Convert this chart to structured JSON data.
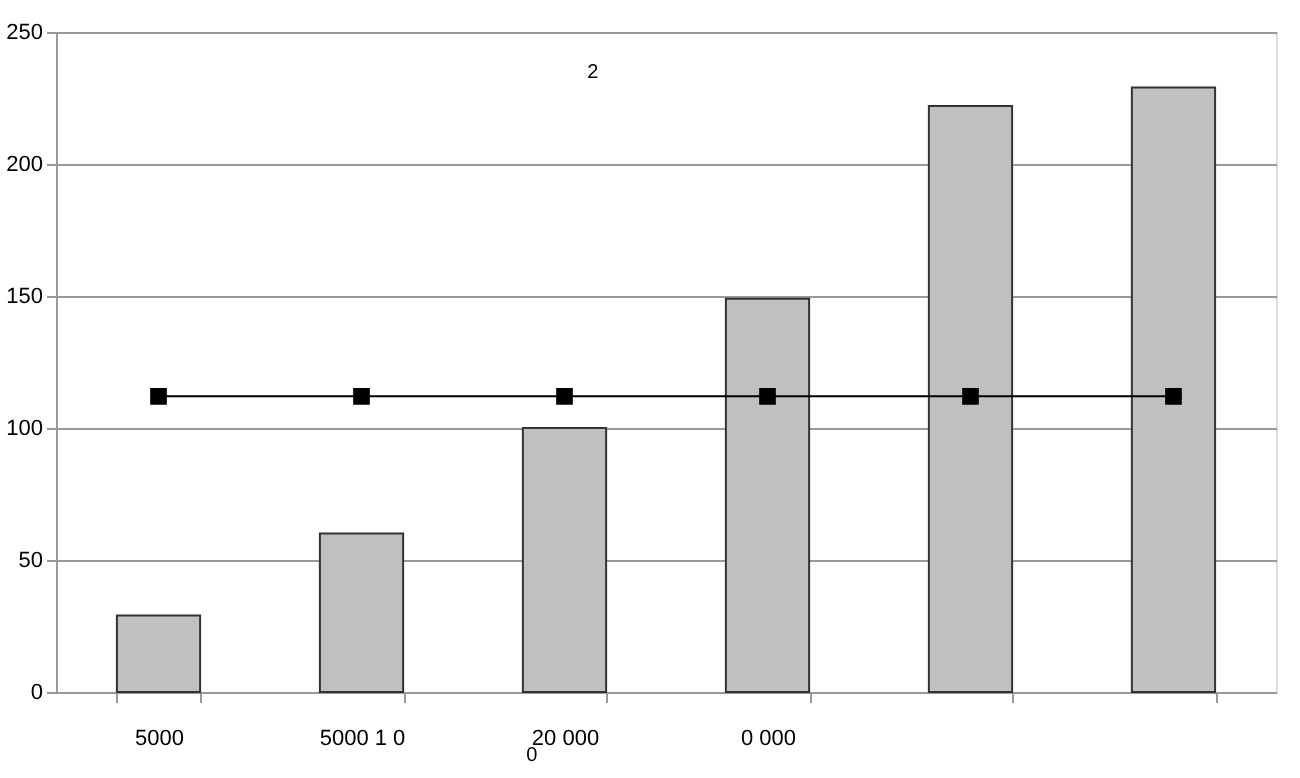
{
  "chart_data": {
    "type": "bar",
    "categories": [
      "5000",
      "5000 1 0",
      "20 000",
      "0 000",
      null,
      null
    ],
    "series": [
      {
        "color": "#c0c0c0",
        "values": [
          29,
          60,
          100,
          149,
          222,
          229
        ]
      },
      {
        "type": "line",
        "color": "#000000",
        "marker": "square",
        "values": [
          112,
          112,
          112,
          112,
          112,
          112
        ]
      }
    ],
    "ylim": [
      0,
      250
    ],
    "yticks": [
      0,
      50,
      100,
      150,
      200,
      250
    ],
    "grid": "y",
    "annotations": [
      "2",
      "0"
    ]
  }
}
